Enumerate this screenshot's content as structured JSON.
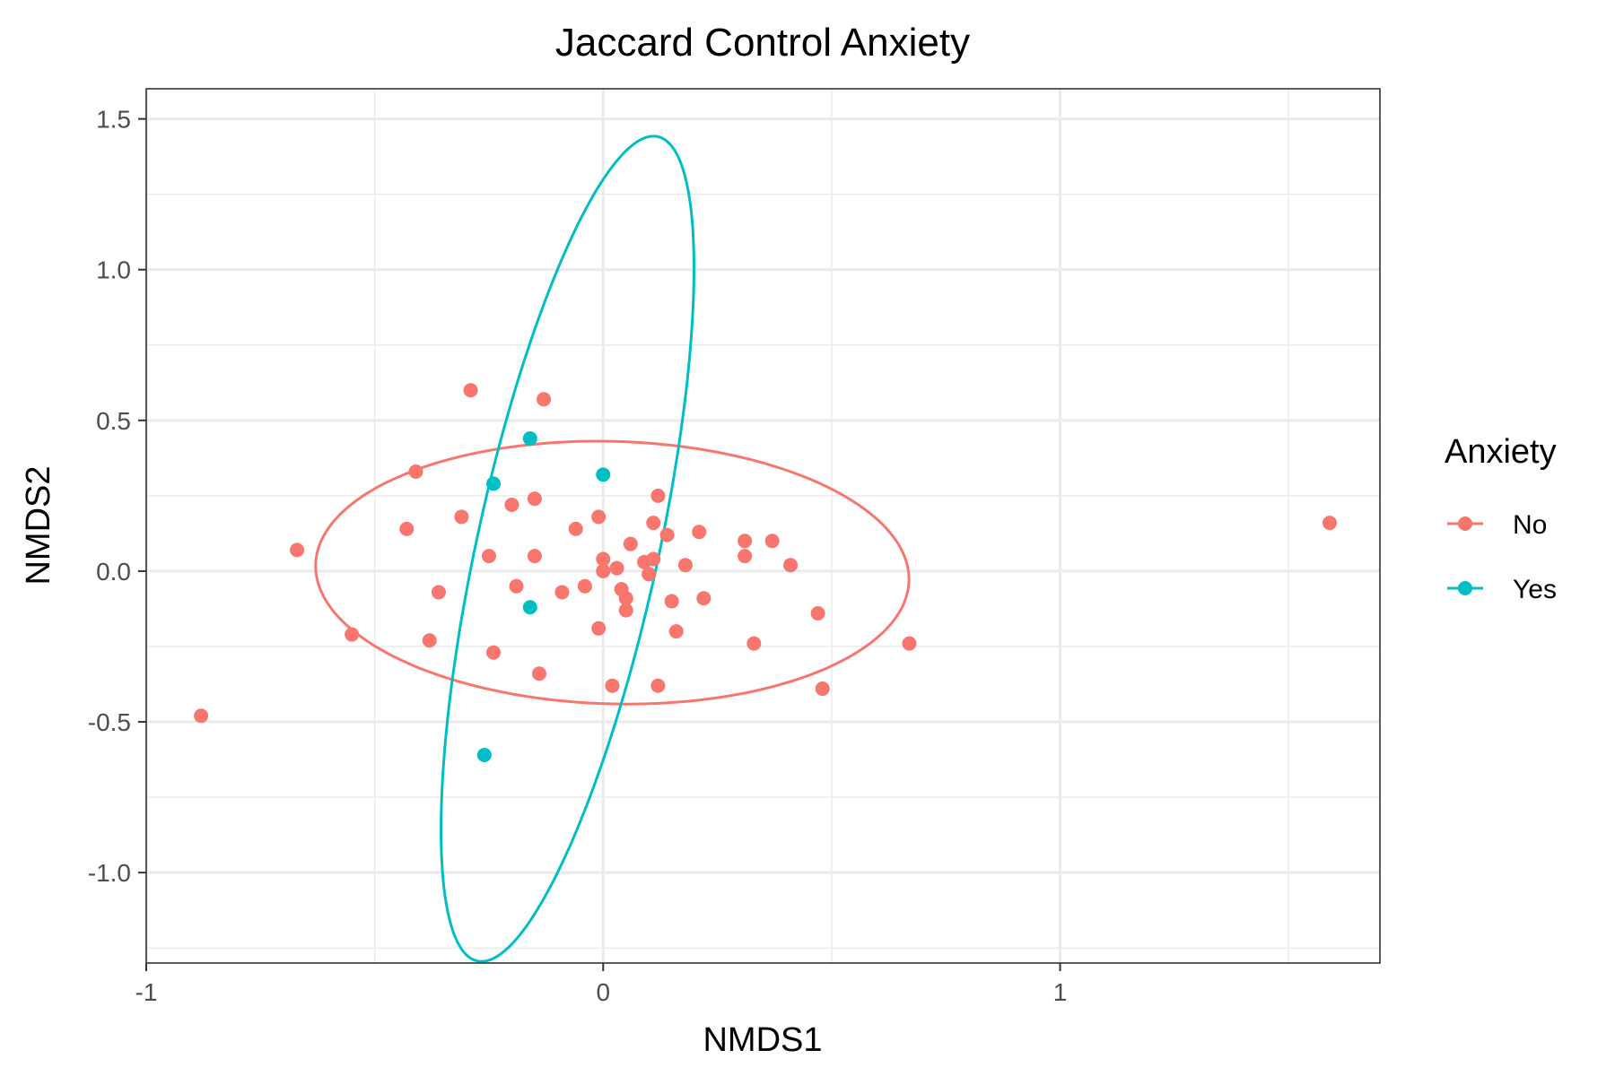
{
  "chart_data": {
    "type": "scatter",
    "title": "Jaccard Control Anxiety",
    "xlabel": "NMDS1",
    "ylabel": "NMDS2",
    "xlim": [
      -1.0,
      1.7
    ],
    "ylim": [
      -1.3,
      1.6
    ],
    "x_ticks": [
      -1,
      0,
      1
    ],
    "x_tick_labels": [
      "-1",
      "0",
      "1"
    ],
    "y_ticks": [
      -1.0,
      -0.5,
      0.0,
      0.5,
      1.0,
      1.5
    ],
    "y_tick_labels": [
      "-1.0",
      "-0.5",
      "0.0",
      "0.5",
      "1.0",
      "1.5"
    ],
    "grid": true,
    "legend": {
      "title": "Anxiety",
      "position": "right",
      "entries": [
        {
          "label": "No",
          "color": "#F8766D"
        },
        {
          "label": "Yes",
          "color": "#00BFC4"
        }
      ]
    },
    "series": [
      {
        "name": "No",
        "color": "#F8766D",
        "points": [
          [
            -0.88,
            -0.48
          ],
          [
            -0.67,
            0.07
          ],
          [
            -0.55,
            -0.21
          ],
          [
            -0.43,
            0.14
          ],
          [
            -0.41,
            0.33
          ],
          [
            -0.38,
            -0.23
          ],
          [
            -0.36,
            -0.07
          ],
          [
            -0.31,
            0.18
          ],
          [
            -0.29,
            0.6
          ],
          [
            -0.25,
            0.05
          ],
          [
            -0.24,
            -0.27
          ],
          [
            -0.2,
            0.22
          ],
          [
            -0.19,
            -0.05
          ],
          [
            -0.15,
            0.24
          ],
          [
            -0.15,
            0.05
          ],
          [
            -0.14,
            -0.34
          ],
          [
            -0.13,
            0.57
          ],
          [
            -0.09,
            -0.07
          ],
          [
            -0.06,
            0.14
          ],
          [
            -0.04,
            -0.05
          ],
          [
            -0.01,
            0.18
          ],
          [
            -0.01,
            -0.19
          ],
          [
            0.0,
            0.04
          ],
          [
            0.0,
            0.0
          ],
          [
            0.02,
            -0.38
          ],
          [
            0.03,
            0.01
          ],
          [
            0.04,
            -0.06
          ],
          [
            0.05,
            -0.09
          ],
          [
            0.05,
            -0.13
          ],
          [
            0.06,
            0.09
          ],
          [
            0.09,
            0.03
          ],
          [
            0.1,
            -0.01
          ],
          [
            0.11,
            0.16
          ],
          [
            0.11,
            0.04
          ],
          [
            0.12,
            0.25
          ],
          [
            0.12,
            -0.38
          ],
          [
            0.14,
            0.12
          ],
          [
            0.15,
            -0.1
          ],
          [
            0.16,
            -0.2
          ],
          [
            0.18,
            0.02
          ],
          [
            0.21,
            0.13
          ],
          [
            0.22,
            -0.09
          ],
          [
            0.31,
            0.1
          ],
          [
            0.31,
            0.05
          ],
          [
            0.33,
            -0.24
          ],
          [
            0.37,
            0.1
          ],
          [
            0.41,
            0.02
          ],
          [
            0.47,
            -0.14
          ],
          [
            0.48,
            -0.39
          ],
          [
            0.67,
            -0.24
          ],
          [
            1.59,
            0.16
          ]
        ]
      },
      {
        "name": "Yes",
        "color": "#00BFC4",
        "points": [
          [
            -0.26,
            -0.61
          ],
          [
            -0.24,
            0.29
          ],
          [
            -0.16,
            0.44
          ],
          [
            -0.16,
            -0.12
          ],
          [
            0.0,
            0.32
          ]
        ]
      }
    ],
    "ellipses": [
      {
        "series": "No",
        "color": "#F8766D",
        "center": [
          0.02,
          -0.005
        ],
        "semi_axes": [
          0.65,
          0.435
        ],
        "rotation_deg": -3.5
      },
      {
        "series": "Yes",
        "color": "#00BFC4",
        "center": [
          -0.078,
          0.074
        ],
        "semi_axes": [
          1.382,
          0.201
        ],
        "rotation_deg": 82.0
      }
    ]
  }
}
